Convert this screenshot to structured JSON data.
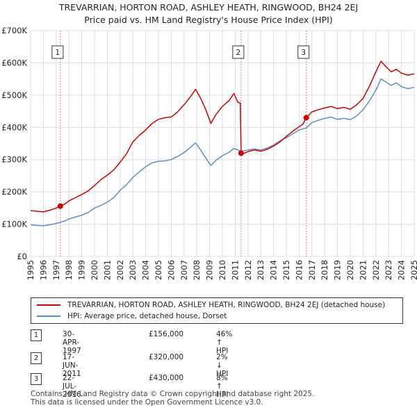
{
  "title_line1": "TREVARRIAN, HORTON ROAD, ASHLEY HEATH, RINGWOOD, BH24 2EJ",
  "title_line2": "Price paid vs. HM Land Registry's House Price Index (HPI)",
  "colors": {
    "red": "#cc0000",
    "blue": "#5b8ec9",
    "grid": "#dddddd",
    "vline": "#d98080"
  },
  "chart_data": {
    "type": "line",
    "xlim": [
      1995,
      2025
    ],
    "ylim": [
      0,
      700000
    ],
    "x_ticks": [
      "1995",
      "1996",
      "1997",
      "1998",
      "1999",
      "2000",
      "2001",
      "2002",
      "2003",
      "2004",
      "2005",
      "2006",
      "2007",
      "2008",
      "2009",
      "2010",
      "2011",
      "2012",
      "2013",
      "2014",
      "2015",
      "2016",
      "2017",
      "2018",
      "2019",
      "2020",
      "2021",
      "2022",
      "2023",
      "2024",
      "2025"
    ],
    "y_ticks": [
      {
        "value": 0,
        "label": "£0"
      },
      {
        "value": 100000,
        "label": "£100K"
      },
      {
        "value": 200000,
        "label": "£200K"
      },
      {
        "value": 300000,
        "label": "£300K"
      },
      {
        "value": 400000,
        "label": "£400K"
      },
      {
        "value": 500000,
        "label": "£500K"
      },
      {
        "value": 600000,
        "label": "£600K"
      },
      {
        "value": 700000,
        "label": "£700K"
      }
    ],
    "series": [
      {
        "name": "TREVARRIAN, HORTON ROAD, ASHLEY HEATH, RINGWOOD, BH24 2EJ (detached house)",
        "color": "#cc0000",
        "points": [
          [
            1995.0,
            142000
          ],
          [
            1995.5,
            140000
          ],
          [
            1996.0,
            138000
          ],
          [
            1996.5,
            143000
          ],
          [
            1997.0,
            150000
          ],
          [
            1997.33,
            156000
          ],
          [
            1997.7,
            163000
          ],
          [
            1998.0,
            172000
          ],
          [
            1998.5,
            182000
          ],
          [
            1999.0,
            192000
          ],
          [
            1999.5,
            203000
          ],
          [
            2000.0,
            220000
          ],
          [
            2000.5,
            238000
          ],
          [
            2001.0,
            252000
          ],
          [
            2001.5,
            268000
          ],
          [
            2002.0,
            292000
          ],
          [
            2002.5,
            318000
          ],
          [
            2003.0,
            355000
          ],
          [
            2003.5,
            375000
          ],
          [
            2004.0,
            392000
          ],
          [
            2004.5,
            412000
          ],
          [
            2005.0,
            425000
          ],
          [
            2005.5,
            430000
          ],
          [
            2006.0,
            432000
          ],
          [
            2006.5,
            448000
          ],
          [
            2007.0,
            470000
          ],
          [
            2007.5,
            495000
          ],
          [
            2007.9,
            518000
          ],
          [
            2008.3,
            490000
          ],
          [
            2008.7,
            455000
          ],
          [
            2009.1,
            412000
          ],
          [
            2009.5,
            440000
          ],
          [
            2010.0,
            465000
          ],
          [
            2010.5,
            482000
          ],
          [
            2010.9,
            505000
          ],
          [
            2011.2,
            478000
          ],
          [
            2011.4,
            475000
          ],
          [
            2011.46,
            320000
          ],
          [
            2011.6,
            318000
          ],
          [
            2012.0,
            325000
          ],
          [
            2012.5,
            330000
          ],
          [
            2013.0,
            326000
          ],
          [
            2013.5,
            332000
          ],
          [
            2014.0,
            342000
          ],
          [
            2014.5,
            355000
          ],
          [
            2015.0,
            372000
          ],
          [
            2015.5,
            388000
          ],
          [
            2016.0,
            402000
          ],
          [
            2016.3,
            410000
          ],
          [
            2016.56,
            430000
          ],
          [
            2017.0,
            448000
          ],
          [
            2017.5,
            455000
          ],
          [
            2018.0,
            460000
          ],
          [
            2018.5,
            465000
          ],
          [
            2019.0,
            458000
          ],
          [
            2019.5,
            462000
          ],
          [
            2020.0,
            456000
          ],
          [
            2020.5,
            470000
          ],
          [
            2021.0,
            490000
          ],
          [
            2021.5,
            528000
          ],
          [
            2022.0,
            572000
          ],
          [
            2022.4,
            605000
          ],
          [
            2022.8,
            588000
          ],
          [
            2023.2,
            572000
          ],
          [
            2023.6,
            580000
          ],
          [
            2024.0,
            568000
          ],
          [
            2024.5,
            562000
          ],
          [
            2025.0,
            566000
          ]
        ]
      },
      {
        "name": "HPI: Average price, detached house, Dorset",
        "color": "#5b8ec9",
        "points": [
          [
            1995.0,
            98000
          ],
          [
            1995.5,
            96000
          ],
          [
            1996.0,
            95000
          ],
          [
            1996.5,
            98000
          ],
          [
            1997.0,
            102000
          ],
          [
            1997.33,
            106000
          ],
          [
            1997.7,
            110000
          ],
          [
            1998.0,
            116000
          ],
          [
            1998.5,
            122000
          ],
          [
            1999.0,
            128000
          ],
          [
            1999.5,
            136000
          ],
          [
            2000.0,
            150000
          ],
          [
            2000.5,
            158000
          ],
          [
            2001.0,
            168000
          ],
          [
            2001.5,
            182000
          ],
          [
            2002.0,
            205000
          ],
          [
            2002.5,
            222000
          ],
          [
            2003.0,
            245000
          ],
          [
            2003.5,
            262000
          ],
          [
            2004.0,
            278000
          ],
          [
            2004.5,
            290000
          ],
          [
            2005.0,
            295000
          ],
          [
            2005.5,
            296000
          ],
          [
            2006.0,
            300000
          ],
          [
            2006.5,
            310000
          ],
          [
            2007.0,
            322000
          ],
          [
            2007.5,
            338000
          ],
          [
            2007.9,
            352000
          ],
          [
            2008.3,
            330000
          ],
          [
            2008.7,
            305000
          ],
          [
            2009.1,
            282000
          ],
          [
            2009.5,
            298000
          ],
          [
            2010.0,
            312000
          ],
          [
            2010.5,
            322000
          ],
          [
            2010.9,
            335000
          ],
          [
            2011.2,
            330000
          ],
          [
            2011.46,
            326000
          ],
          [
            2011.8,
            328000
          ],
          [
            2012.0,
            330000
          ],
          [
            2012.5,
            333000
          ],
          [
            2013.0,
            330000
          ],
          [
            2013.5,
            336000
          ],
          [
            2014.0,
            345000
          ],
          [
            2014.5,
            358000
          ],
          [
            2015.0,
            368000
          ],
          [
            2015.5,
            380000
          ],
          [
            2016.0,
            392000
          ],
          [
            2016.56,
            398000
          ],
          [
            2017.0,
            415000
          ],
          [
            2017.5,
            422000
          ],
          [
            2018.0,
            428000
          ],
          [
            2018.5,
            432000
          ],
          [
            2019.0,
            425000
          ],
          [
            2019.5,
            428000
          ],
          [
            2020.0,
            424000
          ],
          [
            2020.5,
            435000
          ],
          [
            2021.0,
            455000
          ],
          [
            2021.5,
            482000
          ],
          [
            2022.0,
            515000
          ],
          [
            2022.4,
            550000
          ],
          [
            2022.8,
            540000
          ],
          [
            2023.2,
            530000
          ],
          [
            2023.6,
            538000
          ],
          [
            2024.0,
            526000
          ],
          [
            2024.5,
            520000
          ],
          [
            2025.0,
            524000
          ]
        ]
      }
    ],
    "markers": [
      {
        "label": "1",
        "x": 1997.33,
        "y": 156000
      },
      {
        "label": "2",
        "x": 2011.46,
        "y": 320000
      },
      {
        "label": "3",
        "x": 2016.56,
        "y": 430000
      }
    ]
  },
  "legend": {
    "red_label": "TREVARRIAN, HORTON ROAD, ASHLEY HEATH, RINGWOOD, BH24 2EJ (detached house)",
    "blue_label": "HPI: Average price, detached house, Dorset"
  },
  "transactions": [
    {
      "num": "1",
      "date": "30-APR-1997",
      "price": "£156,000",
      "hpi": "46% ↑ HPI"
    },
    {
      "num": "2",
      "date": "17-JUN-2011",
      "price": "£320,000",
      "hpi": "2% ↓ HPI"
    },
    {
      "num": "3",
      "date": "22-JUL-2016",
      "price": "£430,000",
      "hpi": "8% ↑ HPI"
    }
  ],
  "footer": {
    "line1": "Contains HM Land Registry data © Crown copyright and database right 2025.",
    "line2": "This data is licensed under the Open Government Licence v3.0."
  }
}
